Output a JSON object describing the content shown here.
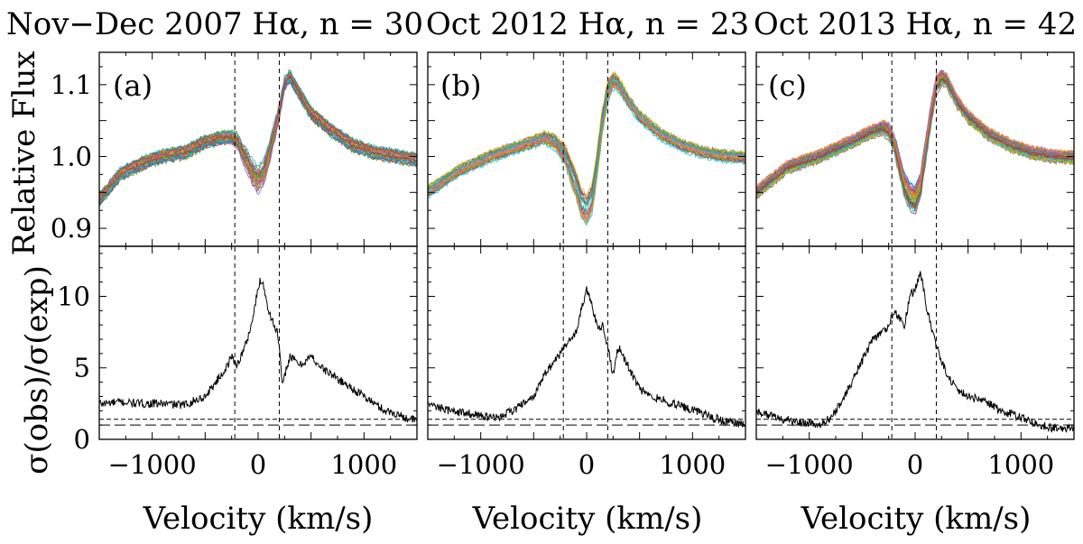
{
  "figure": {
    "ylabel_top": "Relative Flux",
    "ylabel_bottom": "σ(obs)/σ(exp)",
    "xlabel": "Velocity (km/s)"
  },
  "chart_data": [
    {
      "type": "line",
      "panel": "(a)",
      "title": "Nov−Dec 2007 Hα, n = 30",
      "n_spectra": 30,
      "xlabel": "Velocity (km/s)",
      "xlim": [
        -1500,
        1500
      ],
      "xticks": [
        -1000,
        0,
        1000
      ],
      "vlines": [
        -220,
        200
      ],
      "top": {
        "ylabel": "Relative Flux",
        "ylim": [
          0.875,
          1.145
        ],
        "yticks": [
          0.9,
          1.0,
          1.1
        ],
        "profile_x": [
          -1500,
          -1300,
          -1100,
          -900,
          -700,
          -500,
          -350,
          -250,
          -200,
          -100,
          -50,
          0,
          50,
          100,
          200,
          250,
          300,
          400,
          500,
          700,
          900,
          1100,
          1300,
          1500
        ],
        "profile_y": [
          0.94,
          0.975,
          0.99,
          1.0,
          1.005,
          1.02,
          1.025,
          1.025,
          1.02,
          0.99,
          0.975,
          0.965,
          0.975,
          1.0,
          1.06,
          1.1,
          1.11,
          1.085,
          1.06,
          1.035,
          1.015,
          1.005,
          1.0,
          0.995
        ],
        "spread": 0.008,
        "core_spread": 0.02
      },
      "bottom": {
        "ylabel": "σ(obs)/σ(exp)",
        "ylim": [
          0,
          13.5
        ],
        "yticks": [
          0,
          5,
          10
        ],
        "hlines": [
          1.0,
          1.4
        ],
        "x": [
          -1500,
          -1300,
          -1100,
          -900,
          -700,
          -500,
          -400,
          -300,
          -250,
          -200,
          -150,
          -100,
          -50,
          0,
          20,
          50,
          100,
          150,
          180,
          200,
          230,
          250,
          300,
          400,
          500,
          600,
          700,
          800,
          900,
          1000,
          1100,
          1200,
          1300,
          1400,
          1500
        ],
        "y": [
          2.5,
          2.6,
          2.5,
          2.5,
          2.4,
          3.0,
          4.0,
          5.0,
          5.8,
          5.2,
          6.0,
          7.0,
          8.5,
          10.5,
          11.2,
          10.8,
          9.0,
          8.0,
          7.5,
          6.5,
          3.5,
          4.5,
          5.8,
          5.2,
          5.8,
          5.0,
          4.5,
          4.0,
          3.5,
          3.0,
          2.5,
          2.0,
          1.8,
          1.5,
          1.3
        ]
      }
    },
    {
      "type": "line",
      "panel": "(b)",
      "title": "Oct 2012 Hα, n = 23",
      "n_spectra": 23,
      "xlabel": "Velocity (km/s)",
      "xlim": [
        -1500,
        1500
      ],
      "xticks": [
        -1000,
        0,
        1000
      ],
      "vlines": [
        -220,
        200
      ],
      "top": {
        "ylabel": "Relative Flux",
        "ylim": [
          0.875,
          1.145
        ],
        "yticks": [
          0.9,
          1.0,
          1.1
        ],
        "profile_x": [
          -1500,
          -1200,
          -900,
          -600,
          -400,
          -300,
          -200,
          -150,
          -100,
          -50,
          0,
          50,
          100,
          150,
          200,
          250,
          300,
          400,
          500,
          700,
          900,
          1100,
          1300,
          1500
        ],
        "profile_y": [
          0.95,
          0.98,
          1.0,
          1.015,
          1.025,
          1.02,
          1.0,
          0.98,
          0.96,
          0.935,
          0.925,
          0.94,
          0.99,
          1.05,
          1.09,
          1.105,
          1.1,
          1.075,
          1.055,
          1.03,
          1.015,
          1.005,
          1.0,
          0.998
        ],
        "spread": 0.008,
        "core_spread": 0.016
      },
      "bottom": {
        "ylabel": "σ(obs)/σ(exp)",
        "ylim": [
          0,
          13.5
        ],
        "yticks": [
          0,
          5,
          10
        ],
        "hlines": [
          1.0,
          1.4
        ],
        "x": [
          -1500,
          -1300,
          -1100,
          -900,
          -800,
          -700,
          -600,
          -500,
          -400,
          -300,
          -250,
          -200,
          -150,
          -100,
          -50,
          0,
          50,
          100,
          150,
          200,
          250,
          300,
          400,
          500,
          600,
          700,
          800,
          900,
          1000,
          1100,
          1200,
          1300,
          1400,
          1500
        ],
        "y": [
          2.5,
          2.0,
          1.8,
          1.5,
          1.6,
          2.0,
          2.5,
          3.0,
          4.5,
          5.5,
          6.0,
          6.5,
          7.0,
          7.5,
          9.0,
          10.5,
          9.5,
          7.8,
          8.0,
          6.5,
          4.5,
          6.5,
          5.0,
          3.5,
          3.0,
          2.8,
          2.5,
          2.3,
          2.0,
          1.8,
          1.5,
          1.3,
          1.2,
          1.0
        ]
      }
    },
    {
      "type": "line",
      "panel": "(c)",
      "title": "Oct 2013 Hα, n = 42",
      "n_spectra": 42,
      "xlabel": "Velocity (km/s)",
      "xlim": [
        -1500,
        1500
      ],
      "xticks": [
        -1000,
        0,
        1000
      ],
      "vlines": [
        -220,
        200
      ],
      "top": {
        "ylabel": "Relative Flux",
        "ylim": [
          0.875,
          1.145
        ],
        "yticks": [
          0.9,
          1.0,
          1.1
        ],
        "profile_x": [
          -1500,
          -1200,
          -900,
          -600,
          -400,
          -300,
          -250,
          -200,
          -150,
          -100,
          -50,
          0,
          50,
          100,
          150,
          200,
          250,
          300,
          400,
          500,
          700,
          900,
          1100,
          1300,
          1500
        ],
        "profile_y": [
          0.95,
          0.985,
          1.0,
          1.02,
          1.035,
          1.04,
          1.035,
          1.02,
          0.99,
          0.96,
          0.945,
          0.94,
          0.96,
          1.01,
          1.06,
          1.1,
          1.11,
          1.105,
          1.075,
          1.055,
          1.03,
          1.015,
          1.005,
          1.0,
          0.998
        ],
        "spread": 0.008,
        "core_spread": 0.02
      },
      "bottom": {
        "ylabel": "σ(obs)/σ(exp)",
        "ylim": [
          0,
          13.5
        ],
        "yticks": [
          0,
          5,
          10
        ],
        "hlines": [
          1.0,
          1.4
        ],
        "x": [
          -1500,
          -1300,
          -1100,
          -900,
          -800,
          -700,
          -600,
          -500,
          -400,
          -300,
          -250,
          -200,
          -150,
          -100,
          -50,
          0,
          50,
          100,
          150,
          200,
          250,
          300,
          400,
          500,
          600,
          700,
          800,
          900,
          1000,
          1100,
          1200,
          1300,
          1400,
          1500
        ],
        "y": [
          2.0,
          1.5,
          1.2,
          1.0,
          1.5,
          2.5,
          4.0,
          5.5,
          7.0,
          7.5,
          8.0,
          9.0,
          8.5,
          8.0,
          10.0,
          10.5,
          11.8,
          9.5,
          8.0,
          6.5,
          5.5,
          4.5,
          3.5,
          3.0,
          2.8,
          2.5,
          2.0,
          1.8,
          1.5,
          1.2,
          1.0,
          0.8,
          0.8,
          0.8
        ]
      }
    }
  ]
}
